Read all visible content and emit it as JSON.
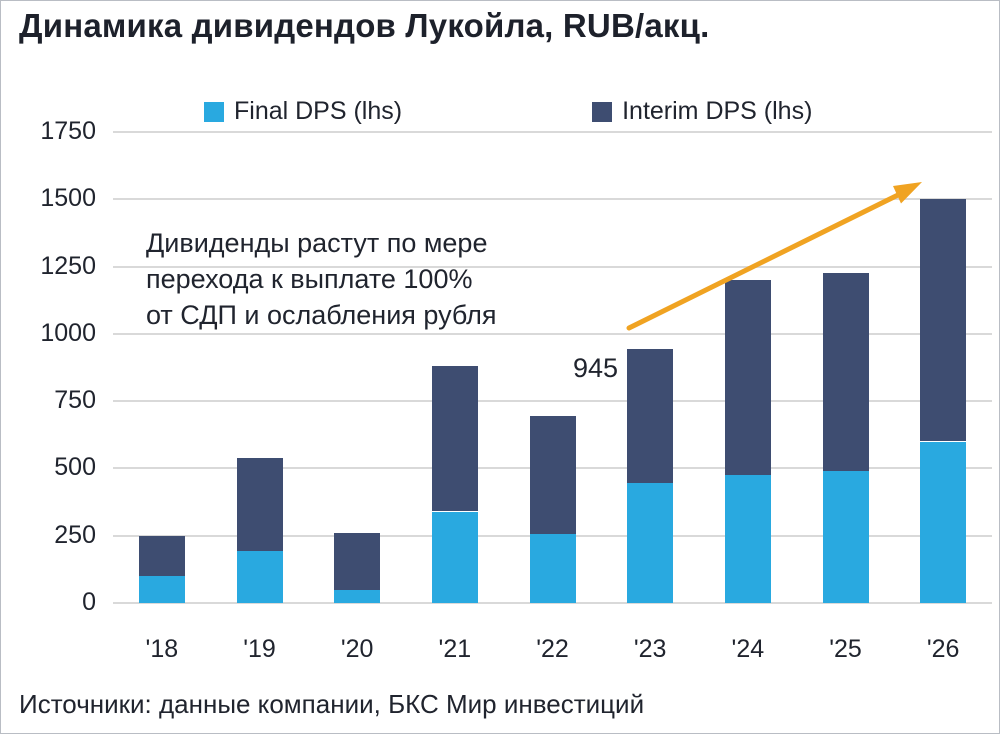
{
  "title": "Динамика дивидендов Лукойла, RUB/акц.",
  "source": "Источники: данные компании, БКС Мир инвестиций",
  "colors": {
    "final": "#29a9e0",
    "interim": "#3e4d71",
    "arrow": "#f0a322",
    "grid": "#d9d9d9",
    "text": "#20242e"
  },
  "chart_data": {
    "type": "bar",
    "stacked": true,
    "title": "Динамика дивидендов Лукойла, RUB/акц.",
    "categories": [
      "'18",
      "'19",
      "'20",
      "'21",
      "'22",
      "'23",
      "'24",
      "'25",
      "'26"
    ],
    "series": [
      {
        "name": "Final DPS (lhs)",
        "color": "#29a9e0",
        "values": [
          100,
          195,
          50,
          340,
          255,
          447,
          475,
          490,
          600
        ]
      },
      {
        "name": "Interim DPS (lhs)",
        "color": "#3e4d71",
        "values": [
          150,
          345,
          210,
          540,
          440,
          498,
          725,
          735,
          900
        ]
      }
    ],
    "ylim": [
      0,
      1750
    ],
    "ytick_step": 250,
    "grid": "horizontal",
    "legend_position": "top",
    "annotation": "Дивиденды растут по мере\nперехода к выплате 100%\nот СДП и ослабления рубля",
    "data_label": {
      "category": "'23",
      "text": "945",
      "total": 945
    }
  }
}
